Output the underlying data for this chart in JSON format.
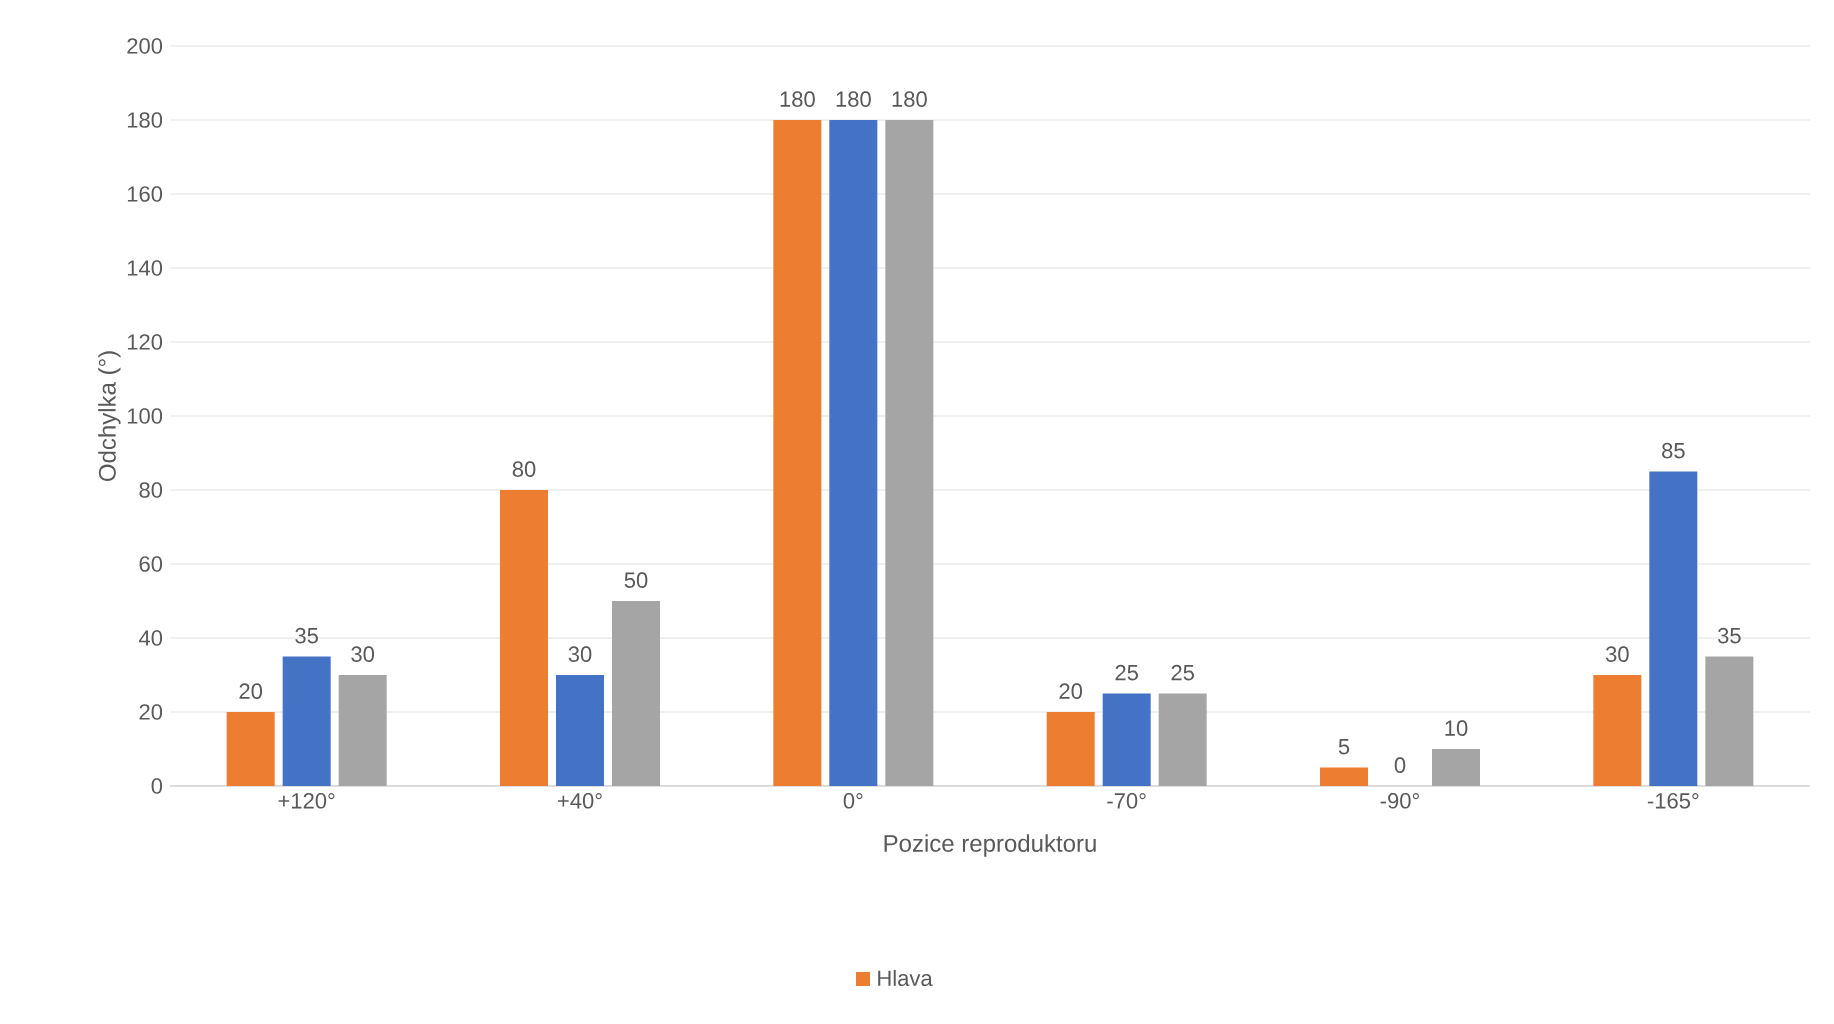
{
  "chart_data": {
    "type": "bar",
    "xlabel": "Pozice reproduktoru",
    "ylabel": "Odchylka (°)",
    "categories": [
      "+120°",
      "+40°",
      "0°",
      "-70°",
      "-90°",
      "-165°"
    ],
    "series": [
      {
        "name": "Hlava",
        "color": "#ed7d31",
        "values": [
          20,
          80,
          180,
          20,
          5,
          30
        ]
      },
      {
        "color": "#4472c4",
        "values": [
          35,
          30,
          180,
          25,
          0,
          85
        ]
      },
      {
        "color": "#a5a5a5",
        "values": [
          30,
          50,
          180,
          25,
          10,
          35
        ]
      }
    ],
    "ylim": [
      0,
      200
    ],
    "yticks": [
      0,
      20,
      40,
      60,
      80,
      100,
      120,
      140,
      160,
      180,
      200
    ],
    "grid": "y",
    "legend": "bottom",
    "data_labels": true
  }
}
